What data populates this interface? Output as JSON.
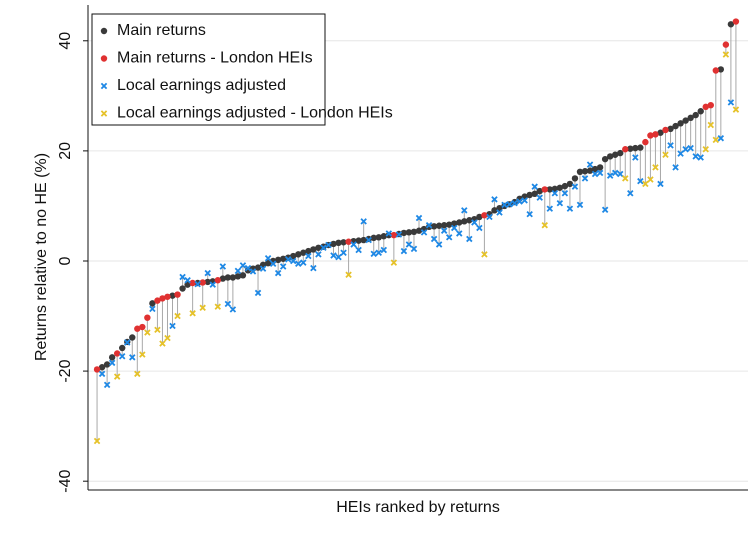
{
  "chart_data": {
    "type": "scatter",
    "xlabel": "HEIs ranked by returns",
    "ylabel": "Returns relative to no HE (%)",
    "xlim": [
      -0.8,
      130.4
    ],
    "ylim": [
      -41.6,
      46.5
    ],
    "yticks": [
      -40,
      -20,
      0,
      20,
      40
    ],
    "grid": true,
    "legend": "top-left",
    "series": [
      {
        "name": "Main returns",
        "color": "#3a3a3a",
        "marker": "dot",
        "x": [
          2,
          3,
          4,
          6,
          7,
          8,
          12,
          16,
          18,
          19,
          21,
          23,
          24,
          26,
          27,
          28,
          29,
          30,
          31,
          32,
          33,
          34,
          35,
          36,
          37,
          38,
          39,
          40,
          41,
          42,
          43,
          44,
          45,
          46,
          47,
          48,
          49,
          50,
          52,
          53,
          54,
          55,
          56,
          57,
          58,
          59,
          61,
          62,
          63,
          64,
          65,
          66,
          67,
          68,
          69,
          70,
          71,
          72,
          73,
          74,
          75,
          76,
          77,
          79,
          80,
          81,
          82,
          83,
          84,
          85,
          86,
          87,
          88,
          89,
          91,
          92,
          93,
          94,
          95,
          96,
          97,
          98,
          99,
          100,
          101,
          102,
          103,
          104,
          105,
          107,
          108,
          109,
          113,
          115,
          116,
          117,
          118,
          119,
          120,
          121,
          125,
          127
        ],
        "values": [
          -19.3,
          -18.8,
          -17.5,
          -15.8,
          -14.7,
          -13.9,
          -7.7,
          -6.3,
          -5,
          -4.3,
          -4,
          -3.8,
          -3.7,
          -3.2,
          -3,
          -3,
          -2.8,
          -2.6,
          -1.7,
          -1.4,
          -1.2,
          -0.7,
          -0.4,
          0,
          0.2,
          0.4,
          0.6,
          0.9,
          1.2,
          1.5,
          1.8,
          2.1,
          2.4,
          2.6,
          2.9,
          3.1,
          3.3,
          3.4,
          3.6,
          3.7,
          3.8,
          4,
          4.2,
          4.3,
          4.5,
          4.7,
          4.9,
          5.1,
          5.2,
          5.3,
          5.5,
          5.8,
          6.2,
          6.3,
          6.4,
          6.5,
          6.6,
          6.8,
          7,
          7.2,
          7.4,
          7.6,
          8,
          8.5,
          9.2,
          9.6,
          10,
          10.3,
          10.7,
          11.3,
          11.7,
          12,
          12.2,
          12.7,
          13,
          13.1,
          13.3,
          13.6,
          14,
          15,
          16.2,
          16.3,
          16.4,
          16.7,
          17,
          18.5,
          19,
          19.3,
          19.6,
          20.4,
          20.5,
          20.6,
          23.3,
          24,
          24.5,
          25,
          25.5,
          26,
          26.5,
          27.2,
          34.8,
          43
        ]
      },
      {
        "name": "Main returns - London HEIs",
        "color": "#e03131",
        "marker": "dot",
        "x": [
          1,
          5,
          9,
          10,
          11,
          13,
          14,
          15,
          17,
          20,
          22,
          25,
          51,
          60,
          78,
          90,
          106,
          110,
          111,
          112,
          114,
          122,
          123,
          124,
          126,
          128
        ],
        "values": [
          -19.7,
          -16.8,
          -12.3,
          -12,
          -10.3,
          -7.2,
          -6.8,
          -6.5,
          -6.1,
          -4,
          -3.9,
          -3.5,
          3.5,
          4.7,
          8.3,
          13,
          20.3,
          21.6,
          22.8,
          23,
          23.8,
          28,
          28.3,
          34.6,
          39.3,
          43.5
        ]
      },
      {
        "name": "Local earnings adjusted",
        "color": "#1e88e5",
        "marker": "cross",
        "x": [
          2,
          3,
          4,
          6,
          7,
          8,
          12,
          16,
          18,
          19,
          21,
          23,
          24,
          26,
          27,
          28,
          29,
          30,
          31,
          32,
          33,
          34,
          35,
          36,
          37,
          38,
          39,
          40,
          41,
          42,
          43,
          44,
          45,
          46,
          47,
          48,
          49,
          50,
          52,
          53,
          54,
          55,
          56,
          57,
          58,
          59,
          61,
          62,
          63,
          64,
          65,
          66,
          67,
          68,
          69,
          70,
          71,
          72,
          73,
          74,
          75,
          76,
          77,
          79,
          80,
          81,
          82,
          83,
          84,
          85,
          86,
          87,
          88,
          89,
          91,
          92,
          93,
          94,
          95,
          96,
          97,
          98,
          99,
          100,
          101,
          102,
          103,
          104,
          105,
          107,
          108,
          109,
          113,
          115,
          116,
          117,
          118,
          119,
          120,
          121,
          125,
          127
        ],
        "values": [
          -20.5,
          -22.5,
          -18.5,
          -17.3,
          -14.8,
          -17.5,
          -8.7,
          -11.8,
          -2.9,
          -3.5,
          -4.2,
          -2.2,
          -4.3,
          -1,
          -7.8,
          -8.8,
          -1.8,
          -0.8,
          -1.3,
          -1.9,
          -5.8,
          -1.4,
          0.5,
          -0.5,
          -2.2,
          -1,
          0.3,
          0,
          -0.5,
          -0.3,
          0.9,
          -1.3,
          1.2,
          2.4,
          2.9,
          1,
          0.7,
          1.5,
          3,
          2,
          7.2,
          3.8,
          1.3,
          1.5,
          2,
          5,
          4.8,
          1.8,
          3,
          2.2,
          7.8,
          5.2,
          6.5,
          4,
          3,
          5.5,
          4.3,
          6,
          5,
          9.2,
          4,
          7,
          6,
          8,
          11.2,
          8.8,
          10.2,
          10.3,
          10.5,
          10.8,
          11,
          8.5,
          13.5,
          11.5,
          9.5,
          12.3,
          10.5,
          12.3,
          9.5,
          13.5,
          10.2,
          15,
          17.5,
          15.8,
          16,
          9.3,
          15.5,
          16,
          15.8,
          12.3,
          18.8,
          14.5,
          14,
          21,
          17,
          19.5,
          20.3,
          20.5,
          19,
          18.8,
          22.3,
          28.8
        ]
      },
      {
        "name": "Local earnings adjusted - London HEIs",
        "color": "#e6c229",
        "marker": "cross",
        "x": [
          1,
          5,
          9,
          10,
          11,
          13,
          14,
          15,
          17,
          20,
          22,
          25,
          51,
          60,
          78,
          90,
          106,
          110,
          111,
          112,
          114,
          122,
          123,
          124,
          126,
          128
        ],
        "values": [
          -32.7,
          -21,
          -20.5,
          -17,
          -13,
          -12.5,
          -15,
          -14,
          -10,
          -9.5,
          -8.5,
          -8.3,
          -2.5,
          -0.3,
          1.2,
          6.5,
          15,
          14,
          14.8,
          17,
          19.3,
          20.3,
          24.7,
          22,
          37.5,
          27.5
        ]
      }
    ]
  }
}
